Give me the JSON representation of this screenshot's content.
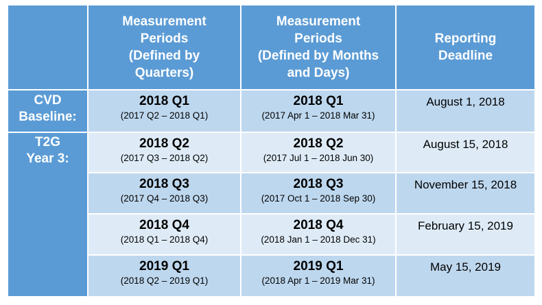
{
  "headers": {
    "quarters": [
      "Measurement",
      "Periods",
      "(Defined by",
      "Quarters)"
    ],
    "months_days": [
      "Measurement",
      "Periods",
      "(Defined by Months",
      "and Days)"
    ],
    "deadline": [
      "Reporting",
      "Deadline"
    ]
  },
  "row_labels": {
    "cvd": [
      "CVD",
      "Baseline:"
    ],
    "t2g": [
      "T2G",
      "Year 3:"
    ]
  },
  "rows": [
    {
      "q_main": "2018 Q1",
      "q_sub": "(2017 Q2 – 2018 Q1)",
      "m_main": "2018 Q1",
      "m_sub": "(2017 Apr 1 – 2018 Mar 31)",
      "deadline": "August 1, 2018"
    },
    {
      "q_main": "2018 Q2",
      "q_sub": "(2017 Q3 – 2018 Q2)",
      "m_main": "2018 Q2",
      "m_sub": "(2017 Jul 1 – 2018 Jun 30)",
      "deadline": "August 15, 2018"
    },
    {
      "q_main": "2018 Q3",
      "q_sub": "(2017 Q4 – 2018 Q3)",
      "m_main": "2018 Q3",
      "m_sub": "(2017 Oct 1 – 2018 Sep 30)",
      "deadline": "November 15, 2018"
    },
    {
      "q_main": "2018 Q4",
      "q_sub": "(2018 Q1 – 2018 Q4)",
      "m_main": "2018 Q4",
      "m_sub": "(2018 Jan 1 – 2018 Dec 31)",
      "deadline": "February 15, 2019"
    },
    {
      "q_main": "2019 Q1",
      "q_sub": "(2018 Q2 – 2019 Q1)",
      "m_main": "2019 Q1",
      "m_sub": "(2018 Apr 1 – 2019 Mar 31)",
      "deadline": "May 15, 2019"
    }
  ],
  "colors": {
    "header_blue": "#5b9bd5",
    "row_dark": "#bdd7ee",
    "row_light": "#deebf7"
  }
}
